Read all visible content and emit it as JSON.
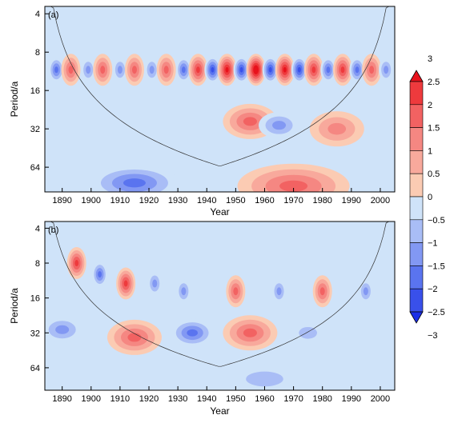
{
  "chart_data": {
    "type": "heatmap",
    "kind": "wavelet power spectrum (filled contours)",
    "panels": [
      {
        "label": "(a)",
        "xlabel": "Year",
        "ylabel": "Period/a",
        "xlim": [
          1884,
          2005
        ],
        "ylim_log2": [
          3.5,
          100
        ],
        "y_axis_scale": "log2, inverted (short periods at top)",
        "x_ticks": [
          "1890",
          "1900",
          "1910",
          "1920",
          "1930",
          "1940",
          "1950",
          "1960",
          "1970",
          "1980",
          "1990",
          "2000"
        ],
        "y_ticks": [
          "4",
          "8",
          "16",
          "32",
          "64"
        ],
        "features": [
          {
            "center_year": 1888,
            "period": 11,
            "value": -2
          },
          {
            "center_year": 1893,
            "period": 11,
            "value": 1.5
          },
          {
            "center_year": 1899,
            "period": 11,
            "value": -1.5
          },
          {
            "center_year": 1904,
            "period": 11,
            "value": 1.5
          },
          {
            "center_year": 1910,
            "period": 11,
            "value": -1.5
          },
          {
            "center_year": 1915,
            "period": 11,
            "value": 1.5
          },
          {
            "center_year": 1921,
            "period": 11,
            "value": -1.5
          },
          {
            "center_year": 1926,
            "period": 11,
            "value": 1.5
          },
          {
            "center_year": 1932,
            "period": 11,
            "value": -2
          },
          {
            "center_year": 1937,
            "period": 11,
            "value": 2
          },
          {
            "center_year": 1942,
            "period": 11,
            "value": -2.5
          },
          {
            "center_year": 1947,
            "period": 11,
            "value": 2.5
          },
          {
            "center_year": 1952,
            "period": 11,
            "value": -2.5
          },
          {
            "center_year": 1957,
            "period": 11,
            "value": 3
          },
          {
            "center_year": 1962,
            "period": 11,
            "value": -2.5
          },
          {
            "center_year": 1967,
            "period": 11,
            "value": 2.5
          },
          {
            "center_year": 1972,
            "period": 11,
            "value": -2.5
          },
          {
            "center_year": 1977,
            "period": 11,
            "value": 2
          },
          {
            "center_year": 1982,
            "period": 11,
            "value": -2
          },
          {
            "center_year": 1987,
            "period": 11,
            "value": 2
          },
          {
            "center_year": 1992,
            "period": 11,
            "value": -2
          },
          {
            "center_year": 1997,
            "period": 11,
            "value": 1.5
          },
          {
            "center_year": 2002,
            "period": 11,
            "value": -1.5
          },
          {
            "center_year": 1955,
            "period": 28,
            "value": 1.5
          },
          {
            "center_year": 1965,
            "period": 30,
            "value": -1.5
          },
          {
            "center_year": 1985,
            "period": 32,
            "value": 1
          },
          {
            "center_year": 1915,
            "period": 85,
            "value": -2
          },
          {
            "center_year": 1970,
            "period": 90,
            "value": 1.5
          }
        ]
      },
      {
        "label": "(b)",
        "xlabel": "Year",
        "ylabel": "Period/a",
        "xlim": [
          1884,
          2005
        ],
        "ylim_log2": [
          3.5,
          100
        ],
        "y_axis_scale": "log2, inverted (short periods at top)",
        "x_ticks": [
          "1890",
          "1900",
          "1910",
          "1920",
          "1930",
          "1940",
          "1950",
          "1960",
          "1970",
          "1980",
          "1990",
          "2000"
        ],
        "y_ticks": [
          "4",
          "8",
          "16",
          "32",
          "64"
        ],
        "features": [
          {
            "center_year": 1895,
            "period": 8,
            "value": 2
          },
          {
            "center_year": 1903,
            "period": 10,
            "value": -2
          },
          {
            "center_year": 1912,
            "period": 12,
            "value": 2
          },
          {
            "center_year": 1922,
            "period": 12,
            "value": -1.5
          },
          {
            "center_year": 1932,
            "period": 14,
            "value": -1.5
          },
          {
            "center_year": 1950,
            "period": 14,
            "value": 1.5
          },
          {
            "center_year": 1965,
            "period": 14,
            "value": -1.5
          },
          {
            "center_year": 1980,
            "period": 14,
            "value": 1.5
          },
          {
            "center_year": 1995,
            "period": 14,
            "value": -1.5
          },
          {
            "center_year": 1890,
            "period": 30,
            "value": -1.5
          },
          {
            "center_year": 1915,
            "period": 35,
            "value": 1.5
          },
          {
            "center_year": 1935,
            "period": 32,
            "value": -2
          },
          {
            "center_year": 1955,
            "period": 32,
            "value": 1.5
          },
          {
            "center_year": 1975,
            "period": 32,
            "value": -1
          },
          {
            "center_year": 1960,
            "period": 80,
            "value": -1
          }
        ]
      }
    ],
    "colorbar": {
      "levels": [
        "3",
        "2.5",
        "2",
        "1.5",
        "1",
        "0.5",
        "0",
        "−0.5",
        "−1",
        "−1.5",
        "−2",
        "−2.5",
        "−3"
      ],
      "colors": [
        "#e8121c",
        "#ee3a3d",
        "#f26262",
        "#f58782",
        "#f8a99c",
        "#fbcbb3",
        "#cfe3f9",
        "#a9bdf6",
        "#8298f3",
        "#5a74ef",
        "#3950ea",
        "#1a2ee6"
      ]
    }
  }
}
